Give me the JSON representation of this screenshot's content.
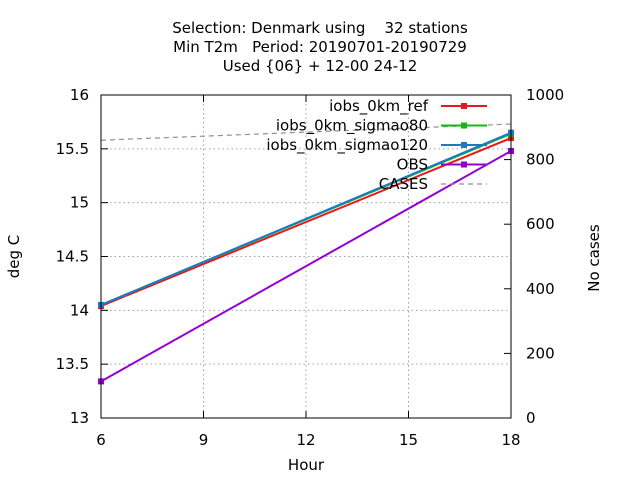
{
  "chart_data": {
    "type": "line",
    "title_lines": [
      "Selection: Denmark using    32 stations",
      "Min T2m   Period: 20190701-20190729",
      "Used {06} + 12-00 24-12"
    ],
    "xlabel": "Hour",
    "ylabel": "deg C",
    "y2label": "No cases",
    "x_ticks": [
      6,
      9,
      12,
      15,
      18
    ],
    "y_ticks": [
      13,
      13.5,
      14,
      14.5,
      15,
      15.5,
      16
    ],
    "y2_ticks": [
      0,
      200,
      400,
      600,
      800,
      1000
    ],
    "xlim": [
      6,
      18
    ],
    "ylim": [
      13,
      16
    ],
    "y2lim": [
      0,
      1000
    ],
    "grid": true,
    "legend_position": "top-right",
    "series": [
      {
        "name": "iobs_0km_ref",
        "color": "#e41a1c",
        "axis": "y",
        "marker": "square",
        "x": [
          6,
          18
        ],
        "values": [
          14.04,
          15.6
        ]
      },
      {
        "name": "iobs_0km_sigmao80",
        "color": "#14b814",
        "axis": "y",
        "marker": "square",
        "x": [
          6,
          18
        ],
        "values": [
          14.05,
          15.64
        ]
      },
      {
        "name": "iobs_0km_sigmao120",
        "color": "#1a7ac8",
        "axis": "y",
        "marker": "square",
        "x": [
          6,
          18
        ],
        "values": [
          14.05,
          15.65
        ]
      },
      {
        "name": "OBS",
        "color": "#9400d3",
        "axis": "y",
        "marker": "square",
        "x": [
          6,
          18
        ],
        "values": [
          13.34,
          15.48
        ]
      },
      {
        "name": "CASES",
        "color": "#909090",
        "axis": "y2",
        "marker": "none",
        "dashed": true,
        "x": [
          6,
          18
        ],
        "values": [
          860,
          910
        ]
      }
    ]
  }
}
